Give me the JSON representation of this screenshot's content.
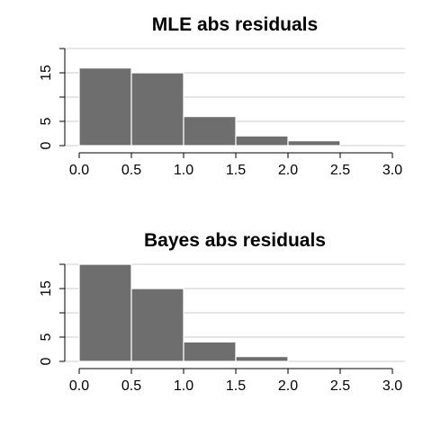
{
  "chart_data": [
    {
      "type": "bar",
      "title": "MLE abs residuals",
      "bins": [
        [
          0.0,
          0.5
        ],
        [
          0.5,
          1.0
        ],
        [
          1.0,
          1.5
        ],
        [
          1.5,
          2.0
        ],
        [
          2.0,
          2.5
        ]
      ],
      "values": [
        16,
        15,
        6,
        2,
        1
      ],
      "xlim": [
        0,
        3
      ],
      "ylim": [
        0,
        20
      ],
      "x_ticks": [
        "0.0",
        "0.5",
        "1.0",
        "1.5",
        "2.0",
        "2.5",
        "3.0"
      ],
      "y_ticks": [
        "0",
        "5",
        "15"
      ],
      "grid": true,
      "bar_color": "#6e6e6e"
    },
    {
      "type": "bar",
      "title": "Bayes abs residuals",
      "bins": [
        [
          0.0,
          0.5
        ],
        [
          0.5,
          1.0
        ],
        [
          1.0,
          1.5
        ],
        [
          1.5,
          2.0
        ]
      ],
      "values": [
        20,
        15,
        4,
        1
      ],
      "xlim": [
        0,
        3
      ],
      "ylim": [
        0,
        20
      ],
      "x_ticks": [
        "0.0",
        "0.5",
        "1.0",
        "1.5",
        "2.0",
        "2.5",
        "3.0"
      ],
      "y_ticks": [
        "0",
        "5",
        "15"
      ],
      "grid": true,
      "bar_color": "#6e6e6e"
    }
  ]
}
